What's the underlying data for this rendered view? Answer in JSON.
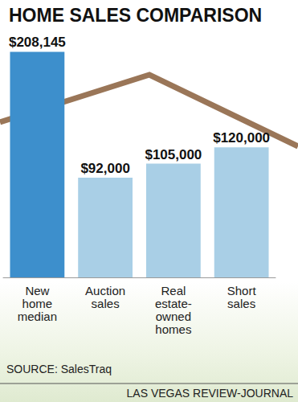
{
  "chart_data": {
    "type": "bar",
    "title": "HOME SALES COMPARISON",
    "categories": [
      "New\nhome\nmedian",
      "Auction\nsales",
      "Real\nestate-\nowned\nhomes",
      "Short\nsales"
    ],
    "values": [
      208145,
      92000,
      105000,
      120000
    ],
    "value_labels": [
      "$208,145",
      "$92,000",
      "$105,000",
      "$120,000"
    ],
    "colors": [
      "#3d8fcc",
      "#a9cfe6",
      "#a9cfe6",
      "#a9cfe6"
    ],
    "ylim": [
      0,
      210000
    ],
    "data_labels": true,
    "tick_labels": "x",
    "grid": false,
    "source": "SOURCE: SalesTraq",
    "credit": "LAS VEGAS REVIEW-JOURNAL"
  }
}
